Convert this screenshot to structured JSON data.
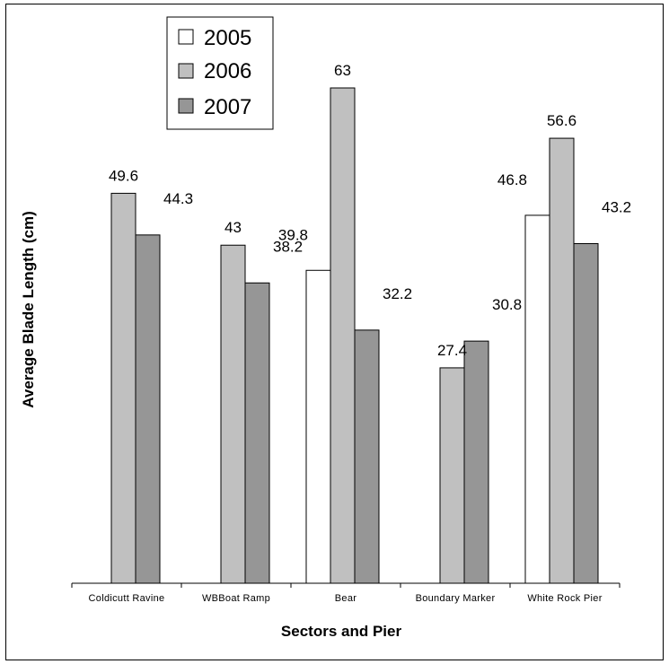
{
  "chart_data": {
    "type": "bar",
    "title": "",
    "xlabel": "Sectors and Pier",
    "ylabel": "Average Blade Length (cm)",
    "categories": [
      "Coldicutt Ravine",
      "WBBoat Ramp",
      "Bear",
      "Boundary Marker",
      "White Rock Pier"
    ],
    "series": [
      {
        "name": "2005",
        "color": "#ffffff",
        "values": [
          null,
          null,
          39.8,
          null,
          46.8
        ]
      },
      {
        "name": "2006",
        "color": "#c0c0c0",
        "values": [
          49.6,
          43,
          63,
          27.4,
          56.6
        ]
      },
      {
        "name": "2007",
        "color": "#969696",
        "values": [
          44.3,
          38.2,
          32.2,
          30.8,
          43.2
        ]
      }
    ],
    "data_labels": [
      [
        null,
        null,
        "39.8",
        null,
        "46.8"
      ],
      [
        "49.6",
        "43",
        "63",
        "27.4",
        "56.6"
      ],
      [
        "44.3",
        "38.2",
        "32.2",
        "30.8",
        "43.2"
      ]
    ],
    "ylim": [
      0,
      70
    ],
    "grid": false,
    "legend_position": "top-left"
  }
}
